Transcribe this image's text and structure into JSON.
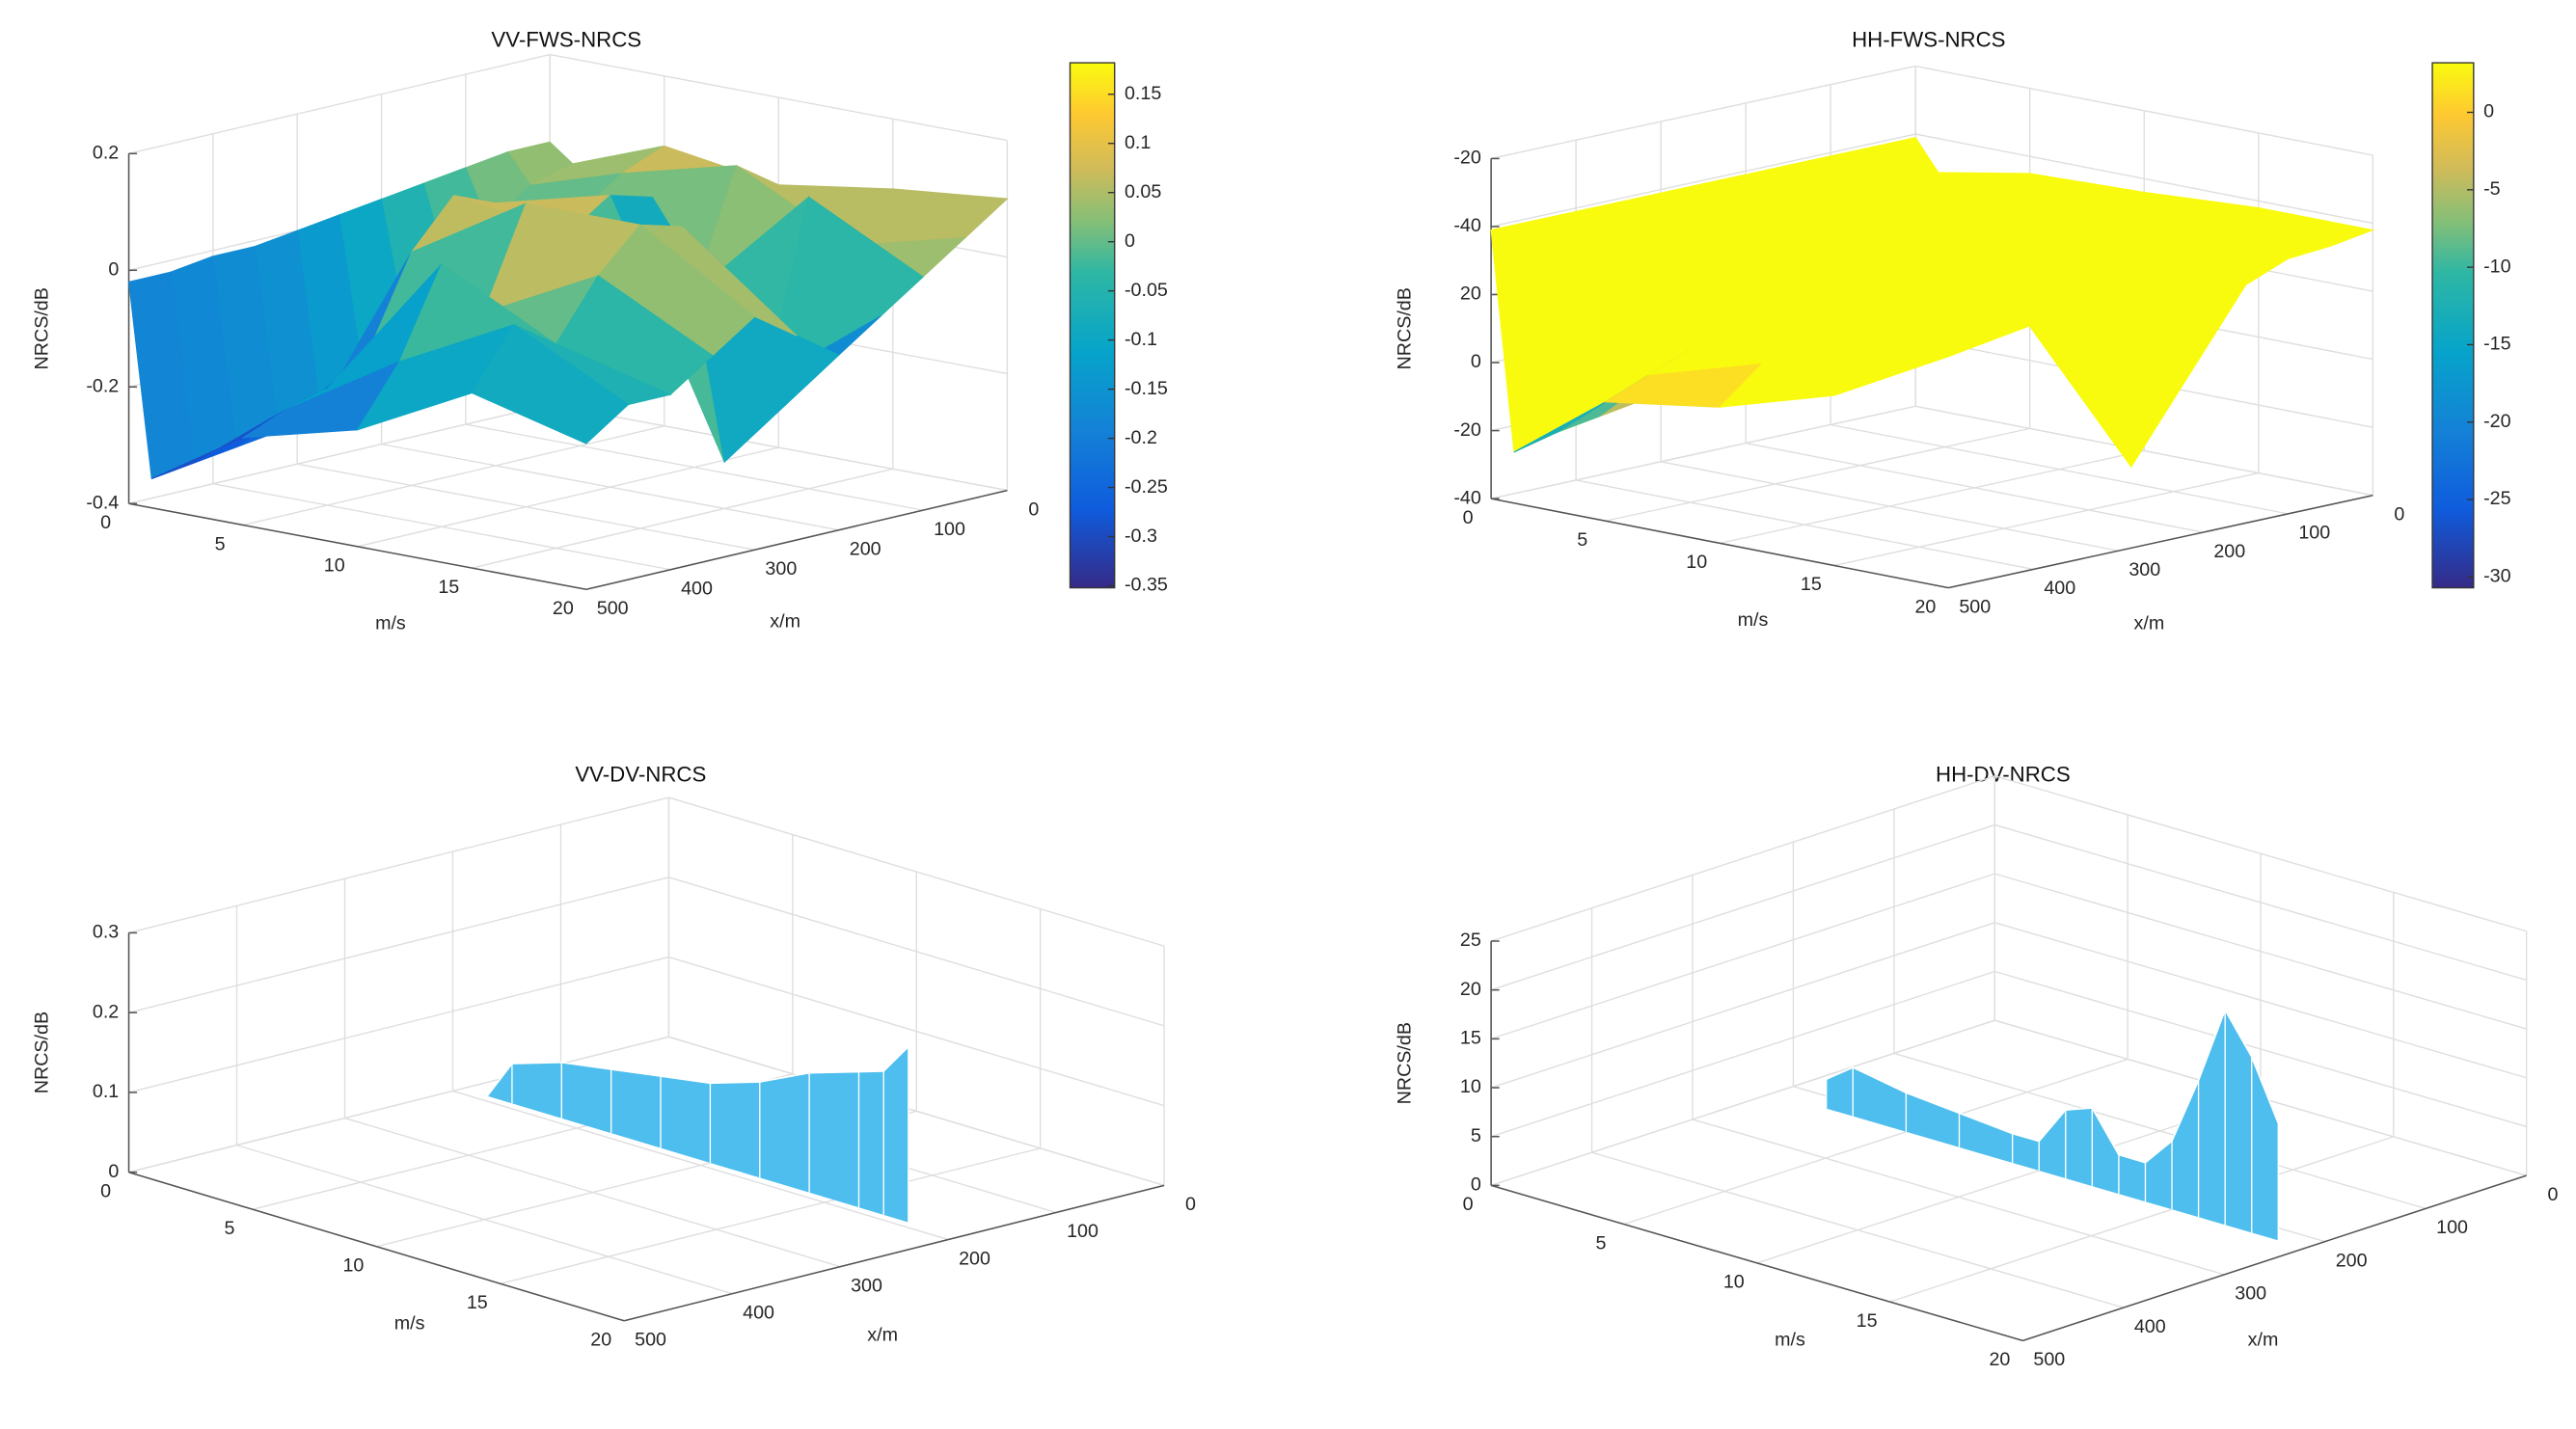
{
  "chart_data": [
    {
      "type": "surface",
      "title": "VV-FWS-NRCS",
      "xlabel": "m/s",
      "ylabel": "x/m",
      "zlabel": "NRCS/dB",
      "speed_lim": [
        0,
        20
      ],
      "speed_ticks": [
        0,
        5,
        10,
        15,
        20
      ],
      "position_lim": [
        0,
        500
      ],
      "position_ticks": [
        0,
        100,
        200,
        300,
        400,
        500
      ],
      "zlim": [
        -0.4,
        0.2
      ],
      "zticks": [
        -0.4,
        -0.2,
        0,
        0.2
      ],
      "speeds": [
        0,
        1,
        5,
        10,
        15,
        20
      ],
      "positions": [
        0,
        50,
        100,
        150,
        200,
        250,
        300,
        350,
        400,
        450,
        500
      ],
      "values": [
        [
          0.05,
          0.05,
          0.04,
          0.03,
          0.02,
          0.01,
          0.0,
          -0.01,
          -0.01,
          -0.02,
          -0.02
        ],
        [
          0.02,
          0.0,
          -0.05,
          -0.1,
          -0.18,
          -0.25,
          -0.3,
          -0.32,
          -0.33,
          -0.34,
          -0.35
        ],
        [
          0.08,
          0.05,
          0.0,
          -0.05,
          0.05,
          0.08,
          0.0,
          -0.15,
          -0.2,
          -0.22,
          -0.25
        ],
        [
          0.05,
          0.1,
          -0.1,
          0.08,
          0.1,
          0.05,
          0.12,
          -0.05,
          0.05,
          -0.1,
          -0.2
        ],
        [
          0.08,
          0.0,
          0.1,
          -0.2,
          -0.32,
          0.1,
          0.12,
          0.05,
          -0.05,
          0.0,
          -0.1
        ],
        [
          0.1,
          0.05,
          0.0,
          -0.05,
          -0.1,
          -0.05,
          0.0,
          -0.05,
          -0.1,
          -0.1,
          -0.15
        ]
      ],
      "colorbar": {
        "clim": [
          -0.352,
          0.182
        ],
        "ticks": [
          -0.35,
          -0.3,
          -0.25,
          -0.2,
          -0.15,
          -0.1,
          -0.05,
          0,
          0.05,
          0.1,
          0.15
        ]
      }
    },
    {
      "type": "surface",
      "title": "HH-FWS-NRCS",
      "xlabel": "m/s",
      "ylabel": "x/m",
      "zlabel": "NRCS/dB",
      "speed_lim": [
        0,
        20
      ],
      "speed_ticks": [
        0,
        5,
        10,
        15,
        20
      ],
      "position_lim": [
        0,
        500
      ],
      "position_ticks": [
        0,
        100,
        200,
        300,
        400,
        500
      ],
      "zlim": [
        -40,
        60
      ],
      "zticks": [
        -40,
        -20,
        0,
        20,
        {
          "value": 40,
          "label": "-40"
        },
        {
          "value": 60,
          "label": "-20"
        }
      ],
      "speeds": [
        0,
        1,
        5,
        10,
        15,
        20
      ],
      "positions": [
        0,
        50,
        100,
        150,
        200,
        250,
        300,
        350,
        400,
        450,
        500
      ],
      "values": [
        [
          39,
          39,
          39,
          39,
          39,
          39,
          39,
          39,
          39,
          39,
          39
        ],
        [
          30,
          25,
          20,
          10,
          0,
          -10,
          -15,
          -18,
          -20,
          -22,
          -25
        ],
        [
          35,
          36,
          20,
          34,
          35,
          30,
          35,
          15,
          5,
          0,
          -5
        ],
        [
          36,
          30,
          35,
          10,
          36,
          35,
          25,
          36,
          20,
          10,
          0
        ],
        [
          38,
          35,
          37,
          -30,
          0,
          36,
          37,
          35,
          30,
          20,
          10
        ],
        [
          38,
          36,
          35,
          30,
          33,
          35,
          36,
          34,
          32,
          30,
          28
        ]
      ],
      "colorbar": {
        "clim": [
          -30.7,
          3.2
        ],
        "ticks": [
          -30,
          -25,
          -20,
          -15,
          -10,
          -5,
          0
        ]
      }
    },
    {
      "type": "curtain",
      "title": "VV-DV-NRCS",
      "xlabel": "m/s",
      "ylabel": "x/m",
      "zlabel": "NRCS/dB",
      "speed_lim": [
        0,
        20
      ],
      "speed_ticks": [
        0,
        5,
        10,
        15,
        20
      ],
      "position_lim": [
        0,
        500
      ],
      "position_ticks": [
        0,
        100,
        200,
        300,
        400,
        500
      ],
      "zlim": [
        0,
        0.3
      ],
      "zticks": [
        0,
        0.1,
        0.2,
        0.3
      ],
      "position": 191,
      "color": "#4dbeee",
      "speeds": [
        1,
        2,
        4,
        6,
        8,
        10,
        12,
        14,
        16,
        17,
        18
      ],
      "values": [
        0,
        0.05,
        0.07,
        0.08,
        0.09,
        0.1,
        0.12,
        0.15,
        0.17,
        0.18,
        0.22
      ]
    },
    {
      "type": "curtain",
      "title": "HH-DV-NRCS",
      "xlabel": "m/s",
      "ylabel": "x/m",
      "zlabel": "NRCS/dB",
      "speed_lim": [
        0,
        20
      ],
      "speed_ticks": [
        0,
        5,
        10,
        15,
        20
      ],
      "position_lim": [
        0,
        500
      ],
      "position_ticks": [
        0,
        100,
        200,
        300,
        400,
        500
      ],
      "zlim": [
        0,
        25
      ],
      "zticks": [
        0,
        5,
        10,
        15,
        20,
        25
      ],
      "position": 220,
      "color": "#4dbeee",
      "speeds": [
        2,
        3,
        5,
        7,
        9,
        10,
        11,
        12,
        13,
        14,
        15,
        16,
        17,
        18,
        19
      ],
      "values": [
        3,
        5,
        4,
        3.5,
        3,
        3,
        7,
        8,
        4,
        4,
        7,
        14,
        22,
        18,
        12
      ]
    }
  ]
}
